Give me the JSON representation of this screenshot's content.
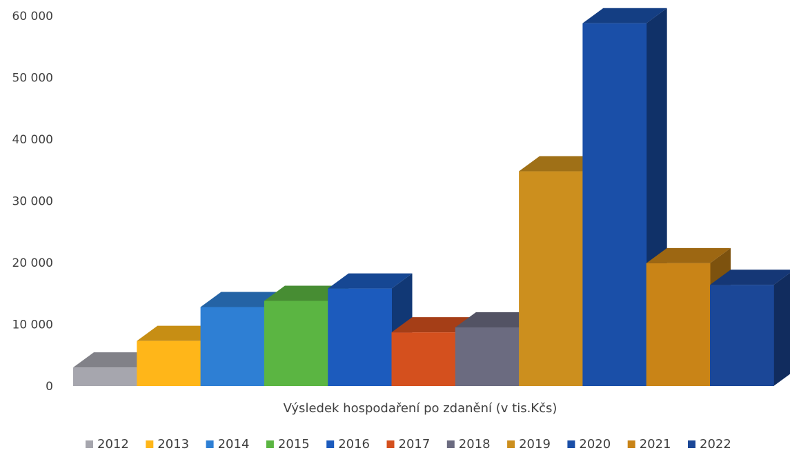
{
  "chart_data": {
    "type": "bar",
    "style": "3d-column",
    "xlabel": "Výsledek hospodaření po zdanění (v tis.Kčs)",
    "ylabel": "",
    "ylim": [
      0,
      60000
    ],
    "yticks": [
      0,
      10000,
      20000,
      30000,
      40000,
      50000,
      60000
    ],
    "ytick_labels": [
      "0",
      "10 000",
      "20 000",
      "30 000",
      "40 000",
      "50 000",
      "60 000"
    ],
    "grid": false,
    "legend_position": "bottom",
    "series": [
      {
        "name": "2012",
        "values": [
          3000
        ],
        "color": "#a6a6ae"
      },
      {
        "name": "2013",
        "values": [
          7300
        ],
        "color": "#ffb619"
      },
      {
        "name": "2014",
        "values": [
          12800
        ],
        "color": "#2e7fd4"
      },
      {
        "name": "2015",
        "values": [
          13800
        ],
        "color": "#5bb542"
      },
      {
        "name": "2016",
        "values": [
          15800
        ],
        "color": "#1c5bbd"
      },
      {
        "name": "2017",
        "values": [
          8700
        ],
        "color": "#d4501e"
      },
      {
        "name": "2018",
        "values": [
          9500
        ],
        "color": "#6b6b80"
      },
      {
        "name": "2019",
        "values": [
          34800
        ],
        "color": "#cc8f1e"
      },
      {
        "name": "2020",
        "values": [
          58800
        ],
        "color": "#1a4fa8"
      },
      {
        "name": "2021",
        "values": [
          19900
        ],
        "color": "#c98417"
      },
      {
        "name": "2022",
        "values": [
          16400
        ],
        "color": "#1b4797"
      }
    ]
  }
}
